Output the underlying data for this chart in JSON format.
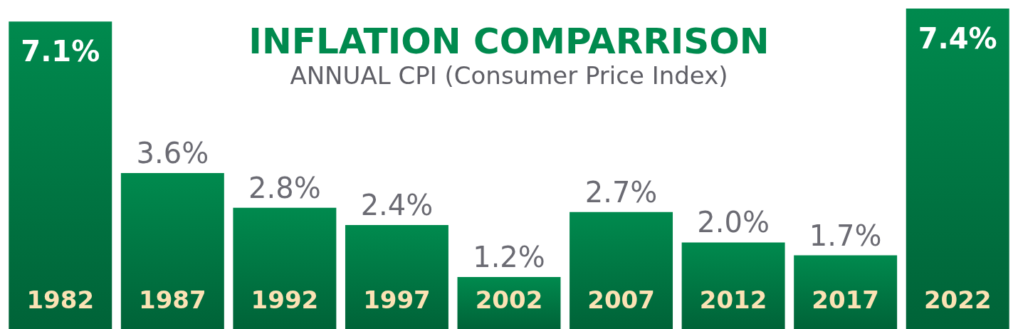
{
  "chart_data": {
    "type": "bar",
    "title": "INFLATION COMPARRISON",
    "subtitle": "ANNUAL CPI (Consumer Price Index)",
    "categories": [
      "1982",
      "1987",
      "1992",
      "1997",
      "2002",
      "2007",
      "2012",
      "2017",
      "2022"
    ],
    "values": [
      7.1,
      3.6,
      2.8,
      2.4,
      1.2,
      2.7,
      2.0,
      1.7,
      7.4
    ],
    "value_labels": [
      "7.1%",
      "3.6%",
      "2.8%",
      "2.4%",
      "1.2%",
      "2.7%",
      "2.0%",
      "1.7%",
      "7.4%"
    ],
    "color": "#008a4e"
  }
}
